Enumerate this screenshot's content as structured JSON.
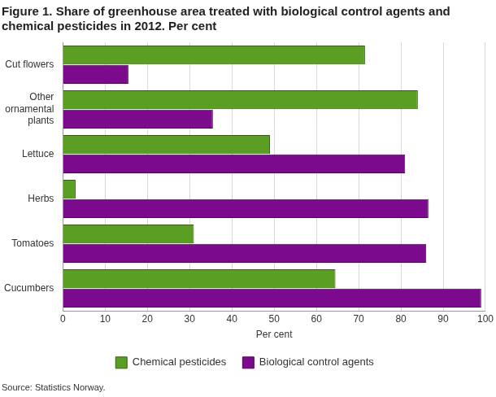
{
  "chart_data": {
    "type": "bar",
    "orientation": "horizontal",
    "title": "Figure 1. Share of greenhouse area treated with biological control agents and chemical pesticides in 2012. Per cent",
    "x_label": "Per cent",
    "source": "Source: Statistics Norway.",
    "categories": [
      "Cut flowers",
      "Other ornamental plants",
      "Lettuce",
      "Herbs",
      "Tomatoes",
      "Cucumbers"
    ],
    "series": [
      {
        "name": "Chemical pesticides",
        "color": "#5a9e23",
        "values": [
          71.5,
          84,
          49,
          3,
          31,
          64.5
        ]
      },
      {
        "name": "Biological control agents",
        "color": "#7b0b8c",
        "values": [
          15.5,
          35.5,
          81,
          86.5,
          86,
          99
        ]
      }
    ],
    "xlim": [
      0,
      100
    ],
    "xticks": [
      0,
      10,
      20,
      30,
      40,
      50,
      60,
      70,
      80,
      90,
      100
    ],
    "grid": true,
    "legend": "bottom"
  }
}
